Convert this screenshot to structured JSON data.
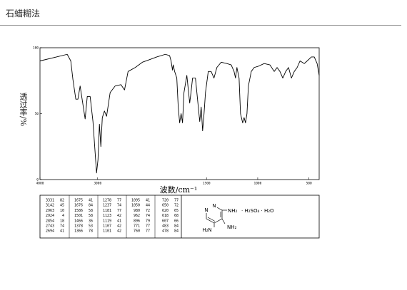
{
  "header": {
    "title": "石蜡糊法"
  },
  "chart_data": {
    "type": "line",
    "x_label": "波数/cm⁻¹",
    "y_label": "透过率/%",
    "xlim": [
      4000,
      400
    ],
    "x_scale_break": 2000,
    "xticks": [
      4000,
      3000,
      1500,
      1000,
      500
    ],
    "ylim": [
      0,
      100
    ],
    "yticks": [
      0,
      50,
      100
    ],
    "x": [
      4000,
      3714,
      3528,
      3466,
      3429,
      3379,
      3342,
      3304,
      3217,
      3180,
      3130,
      3081,
      3043,
      3019,
      2994,
      2969,
      2944,
      2919,
      2882,
      2845,
      2783,
      2696,
      2596,
      2534,
      2472,
      2348,
      2224,
      2099,
      1986,
      1902,
      1860,
      1846,
      1832,
      1825,
      1811,
      1790,
      1776,
      1762,
      1748,
      1734,
      1720,
      1692,
      1664,
      1650,
      1636,
      1608,
      1580,
      1566,
      1552,
      1538,
      1524,
      1510,
      1483,
      1455,
      1427,
      1399,
      1357,
      1301,
      1259,
      1231,
      1217,
      1203,
      1182,
      1168,
      1147,
      1133,
      1119,
      1105,
      1091,
      1063,
      1035,
      993,
      937,
      881,
      839,
      811,
      783,
      755,
      727,
      699,
      671,
      643,
      615,
      587,
      545,
      517,
      476,
      448,
      420,
      400
    ],
    "series": [
      {
        "color": "#000000",
        "values": [
          90,
          93,
          95,
          90,
          76,
          61,
          61,
          71,
          46,
          63,
          63,
          44,
          20,
          5,
          15,
          42,
          25,
          47,
          52,
          48,
          66,
          71,
          72,
          68,
          82,
          85,
          89,
          91,
          93,
          95,
          94,
          90,
          83,
          87,
          82,
          77,
          55,
          43,
          50,
          43,
          66,
          79,
          58,
          67,
          77,
          77,
          55,
          44,
          55,
          37,
          50,
          66,
          82,
          82,
          77,
          85,
          89,
          88,
          87,
          82,
          77,
          85,
          77,
          50,
          43,
          47,
          43,
          50,
          71,
          82,
          85,
          86,
          88,
          87,
          82,
          85,
          82,
          77,
          82,
          85,
          77,
          82,
          85,
          90,
          88,
          90,
          93,
          93,
          88,
          79
        ]
      }
    ]
  },
  "peak_table": {
    "columns": [
      [
        [
          3331,
          82
        ],
        [
          3142,
          45
        ],
        [
          2963,
          10
        ],
        [
          2924,
          4
        ],
        [
          2854,
          18
        ],
        [
          2743,
          74
        ],
        [
          2694,
          41
        ]
      ],
      [
        [
          1675,
          41
        ],
        [
          1676,
          84
        ],
        [
          1586,
          58
        ],
        [
          1501,
          58
        ],
        [
          1466,
          36
        ],
        [
          1378,
          53
        ],
        [
          1366,
          78
        ]
      ],
      [
        [
          1278,
          77
        ],
        [
          1237,
          74
        ],
        [
          1181,
          77
        ],
        [
          1123,
          42
        ],
        [
          1119,
          41
        ],
        [
          1107,
          42
        ],
        [
          1101,
          42
        ]
      ],
      [
        [
          1095,
          41
        ],
        [
          1050,
          44
        ],
        [
          980,
          72
        ],
        [
          962,
          74
        ],
        [
          896,
          79
        ],
        [
          771,
          77
        ],
        [
          760,
          77
        ]
      ],
      [
        [
          720,
          77
        ],
        [
          650,
          72
        ],
        [
          620,
          65
        ],
        [
          618,
          68
        ],
        [
          607,
          66
        ],
        [
          483,
          84
        ],
        [
          478,
          84
        ]
      ]
    ]
  },
  "structure": {
    "ring_atoms": [
      "N",
      "N"
    ],
    "substituents": [
      "NH₂",
      "H₂N",
      "NH₂"
    ],
    "salt": "· H₂SO₄ · H₂O"
  }
}
